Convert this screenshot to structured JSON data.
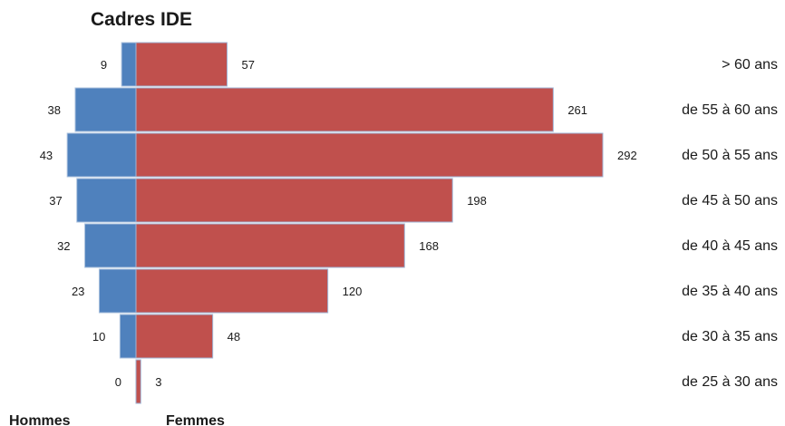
{
  "chart_data": {
    "type": "bar",
    "orientation": "horizontal",
    "title": "Cadres IDE",
    "categories": [
      "> 60 ans",
      "de 55 à 60 ans",
      "de 50 à 55 ans",
      "de 45 à 50 ans",
      "de 40 à 45 ans",
      "de 35 à 40 ans",
      "de 30 à 35 ans",
      "de 25 à 30 ans"
    ],
    "series": [
      {
        "name": "Hommes",
        "color": "#4f81bd",
        "values": [
          9,
          38,
          43,
          37,
          32,
          23,
          10,
          0
        ]
      },
      {
        "name": "Femmes",
        "color": "#c0504d",
        "values": [
          57,
          261,
          292,
          198,
          168,
          120,
          48,
          3
        ]
      }
    ],
    "xlabel": "",
    "ylabel": "",
    "grid": false,
    "legend": "bottom"
  }
}
